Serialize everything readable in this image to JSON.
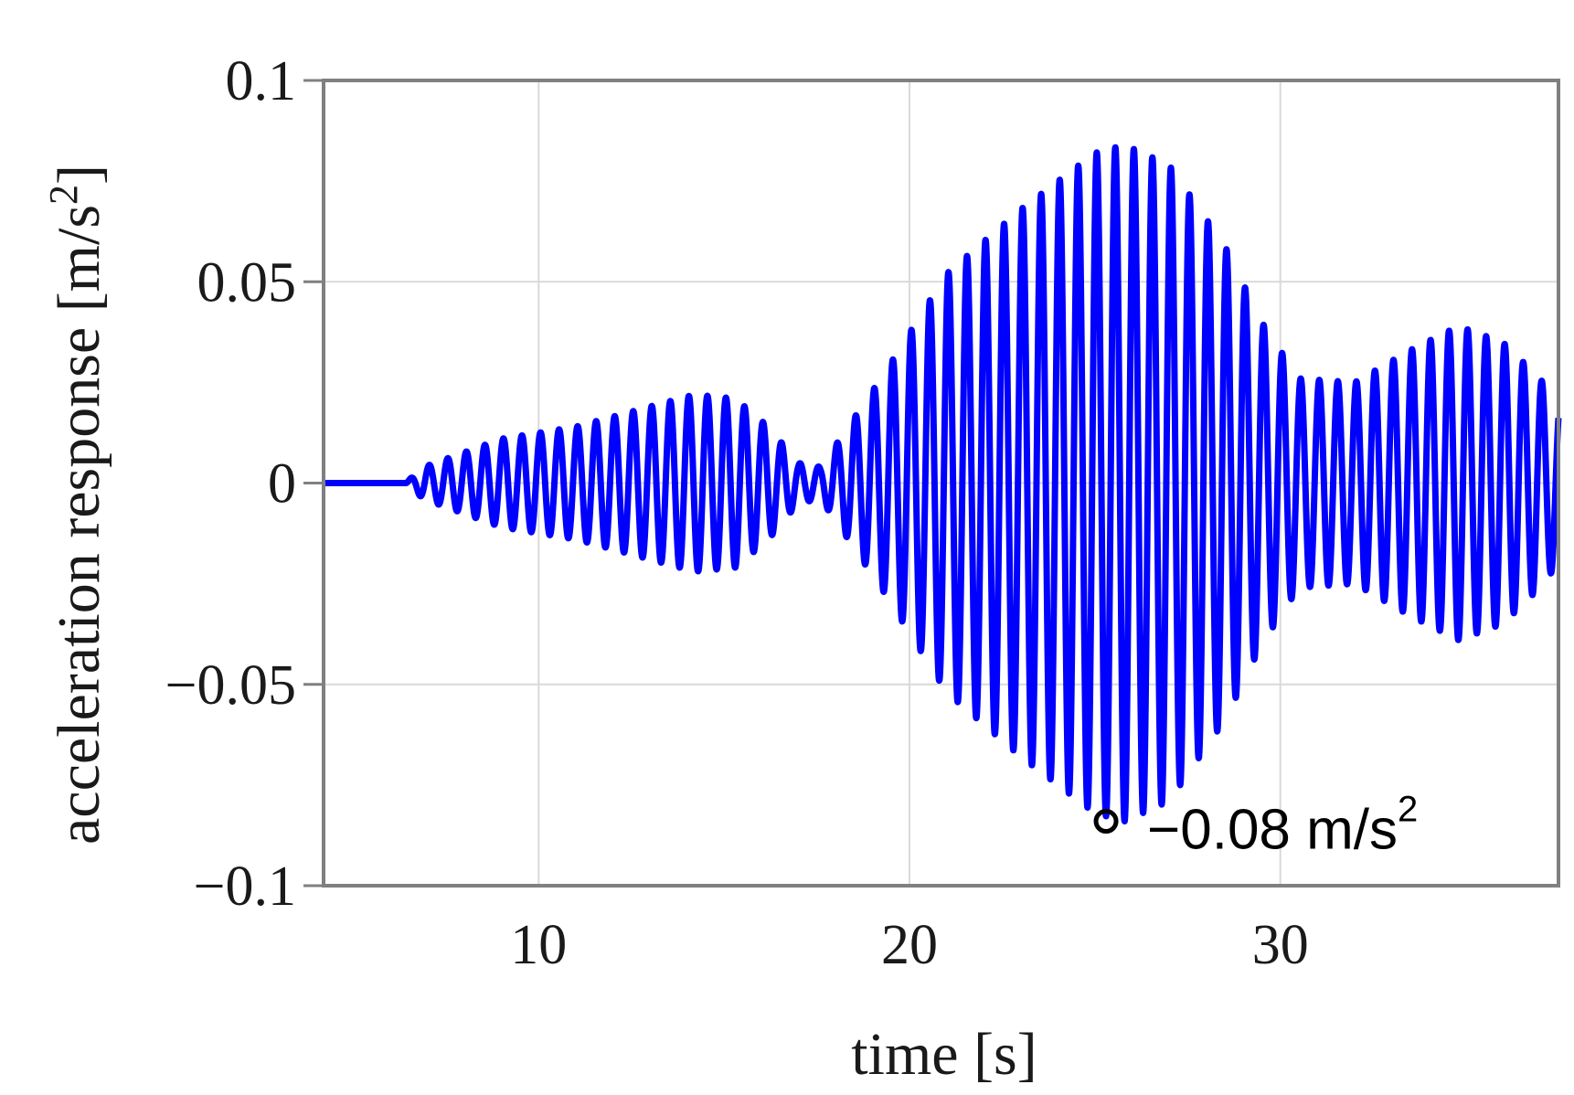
{
  "chart_data": {
    "type": "line",
    "title": "",
    "xlabel": "time [s]",
    "ylabel_main": "acceleration response [m/s",
    "ylabel_sup": "2",
    "ylabel_close": "]",
    "xlim": [
      4.2,
      37.5
    ],
    "ylim": [
      -0.1,
      0.1
    ],
    "grid": true,
    "legend": "none",
    "x_ticks": [
      {
        "value": 10,
        "label": "10"
      },
      {
        "value": 20,
        "label": "20"
      },
      {
        "value": 30,
        "label": "30"
      }
    ],
    "y_ticks": [
      {
        "value": 0.1,
        "label": "0.1"
      },
      {
        "value": 0.05,
        "label": "0.05"
      },
      {
        "value": 0,
        "label": "0"
      },
      {
        "value": -0.05,
        "label": "−0.05"
      },
      {
        "value": -0.1,
        "label": "−0.1"
      }
    ],
    "series": [
      {
        "color": "#0000ff",
        "oscillation_period_s": 0.5,
        "envelope": {
          "t": [
            4.2,
            6.4,
            6.9,
            9.0,
            11.0,
            13.0,
            14.2,
            15.3,
            16.2,
            17.0,
            17.6,
            18.2,
            19.3,
            21.0,
            23.0,
            25.0,
            25.8,
            27.0,
            28.5,
            29.5,
            30.5,
            32.0,
            33.5,
            34.8,
            36.0,
            37.0,
            37.5
          ],
          "amplitude": [
            0.0,
            0.0,
            0.004,
            0.011,
            0.014,
            0.019,
            0.022,
            0.021,
            0.014,
            0.005,
            0.004,
            0.012,
            0.027,
            0.052,
            0.068,
            0.082,
            0.084,
            0.079,
            0.059,
            0.04,
            0.026,
            0.025,
            0.033,
            0.039,
            0.035,
            0.026,
            0.02
          ]
        }
      }
    ],
    "annotation": {
      "x": 25.3,
      "y": -0.084,
      "text": "−0.08 m/s",
      "sup": "2"
    }
  },
  "colors": {
    "frame": "#808080",
    "grid": "#d9d9d9",
    "line": "#0000ff"
  }
}
